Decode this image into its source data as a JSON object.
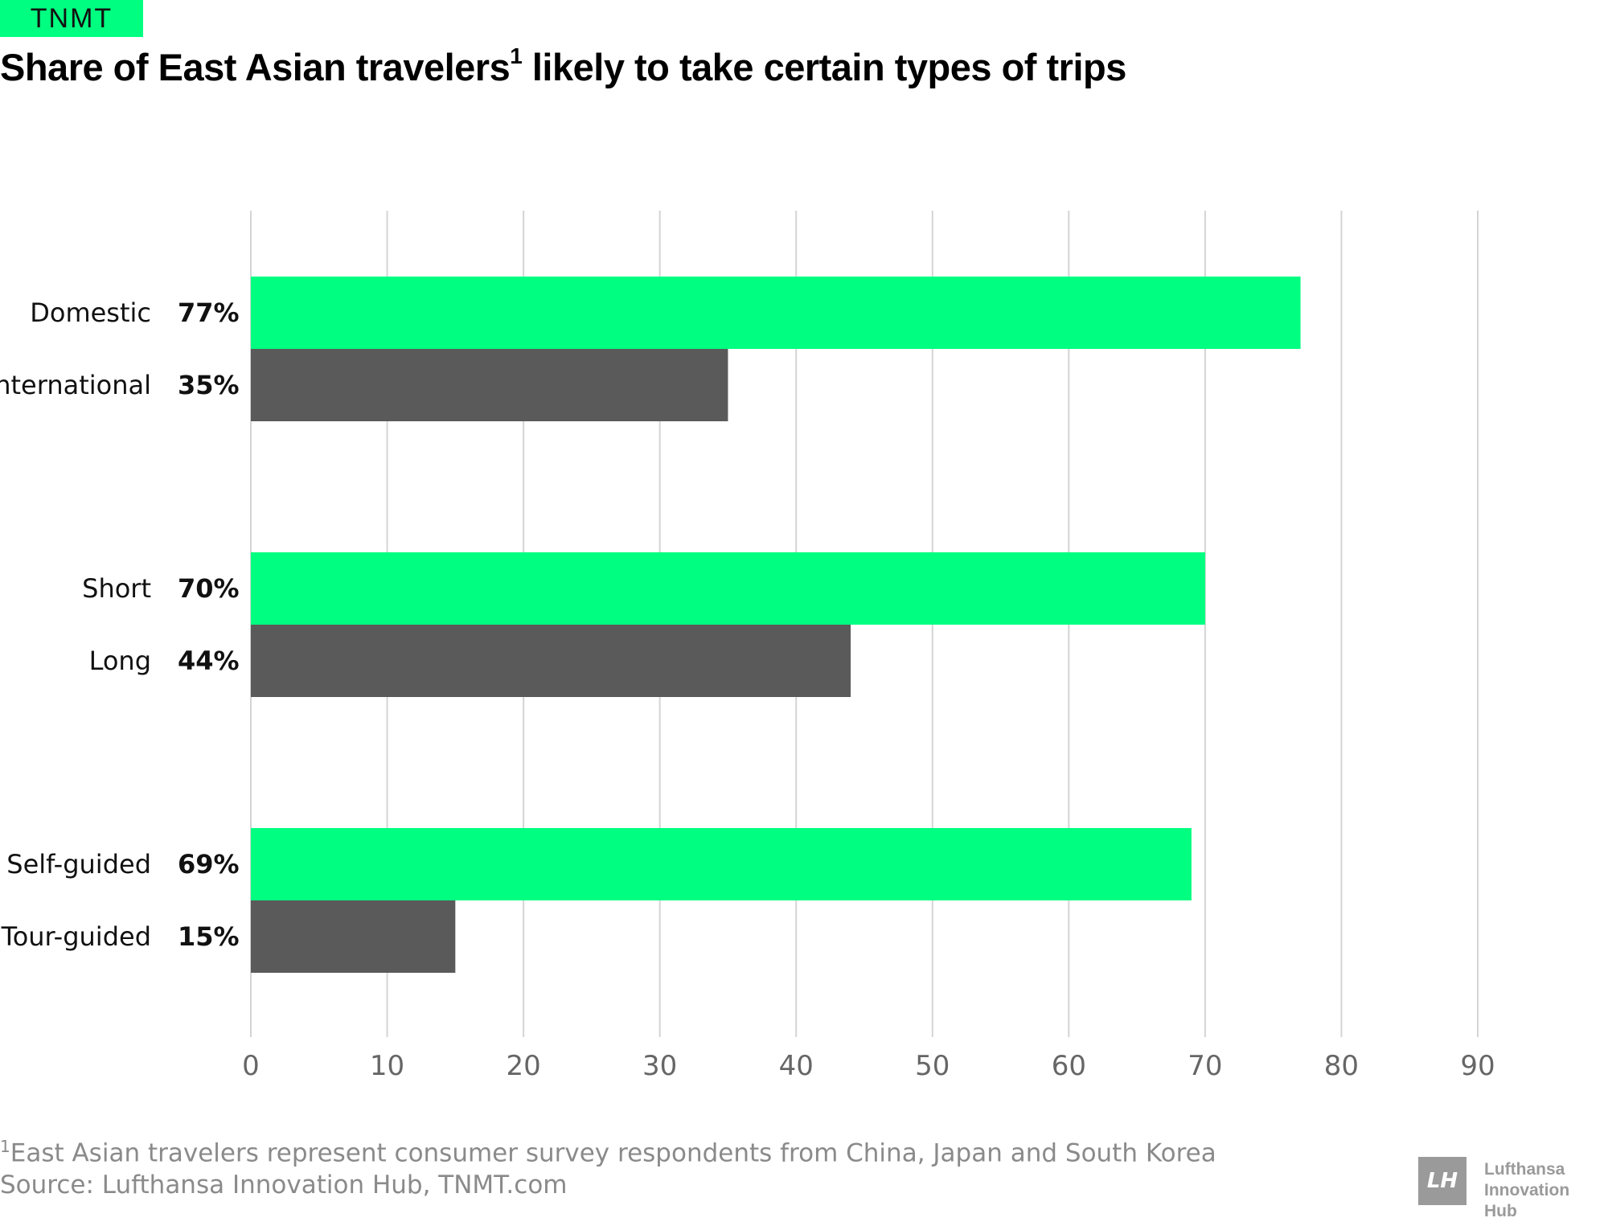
{
  "brand": "TNMT",
  "title": {
    "text": "Share of East Asian travelers",
    "sup": "1",
    "rest": " likely to take certain types of trips"
  },
  "chart_data": {
    "type": "bar",
    "orientation": "horizontal",
    "xlim": [
      0,
      90
    ],
    "x_ticks": [
      0,
      10,
      20,
      30,
      40,
      50,
      60,
      70,
      80,
      90
    ],
    "grid": true,
    "colors": {
      "primary": "#00ff80",
      "secondary": "#5a5a5a",
      "grid": "#d4d4d4"
    },
    "groups": [
      {
        "bars": [
          {
            "label": "Domestic",
            "value": 77,
            "value_label": "77%",
            "color": "primary"
          },
          {
            "label": "International",
            "value": 35,
            "value_label": "35%",
            "color": "secondary"
          }
        ]
      },
      {
        "bars": [
          {
            "label": "Short",
            "value": 70,
            "value_label": "70%",
            "color": "primary"
          },
          {
            "label": "Long",
            "value": 44,
            "value_label": "44%",
            "color": "secondary"
          }
        ]
      },
      {
        "bars": [
          {
            "label": "Self-guided",
            "value": 69,
            "value_label": "69%",
            "color": "primary"
          },
          {
            "label": "Tour-guided",
            "value": 15,
            "value_label": "15%",
            "color": "secondary"
          }
        ]
      }
    ]
  },
  "footnote": {
    "sup": "1",
    "text": "East Asian travelers represent consumer survey respondents from China, Japan and South Korea"
  },
  "source": "Source: Lufthansa Innovation Hub, TNMT.com",
  "logo": {
    "mark": "LH",
    "line1": "Lufthansa",
    "line2": "Innovation Hub"
  }
}
